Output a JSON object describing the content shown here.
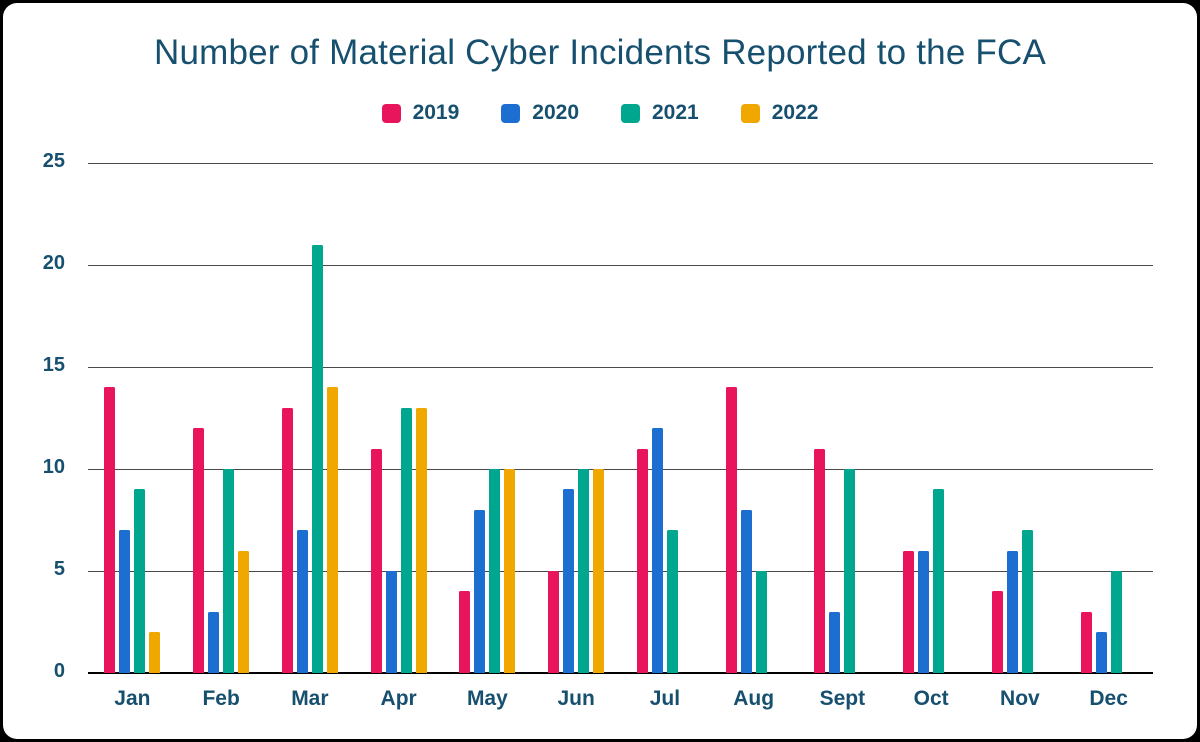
{
  "page": {
    "background_color": "#000000",
    "card_background_color": "#ffffff"
  },
  "chart_data": {
    "type": "bar",
    "title": "Number of Material Cyber Incidents Reported to the FCA",
    "text_color": "#17506f",
    "categories": [
      "Jan",
      "Feb",
      "Mar",
      "Apr",
      "May",
      "Jun",
      "Jul",
      "Aug",
      "Sept",
      "Oct",
      "Nov",
      "Dec"
    ],
    "series": [
      {
        "name": "2019",
        "color": "#e8155d",
        "values": [
          14,
          12,
          13,
          11,
          4,
          5,
          11,
          14,
          11,
          6,
          4,
          3
        ]
      },
      {
        "name": "2020",
        "color": "#1c6fd1",
        "values": [
          7,
          3,
          7,
          5,
          8,
          9,
          12,
          8,
          3,
          6,
          6,
          2
        ]
      },
      {
        "name": "2021",
        "color": "#00a78e",
        "values": [
          9,
          10,
          21,
          13,
          10,
          10,
          7,
          5,
          10,
          9,
          7,
          5
        ]
      },
      {
        "name": "2022",
        "color": "#f0a800",
        "values": [
          2,
          6,
          14,
          13,
          10,
          10,
          null,
          null,
          null,
          null,
          null,
          null
        ]
      }
    ],
    "xlabel": "",
    "ylabel": "",
    "ylim": [
      0,
      25
    ],
    "yticks": [
      0,
      5,
      10,
      15,
      20,
      25
    ],
    "grid": "horizontal",
    "gridline_color": "#4a4a4a",
    "axis_line_color": "#000000",
    "legend_position": "top"
  }
}
